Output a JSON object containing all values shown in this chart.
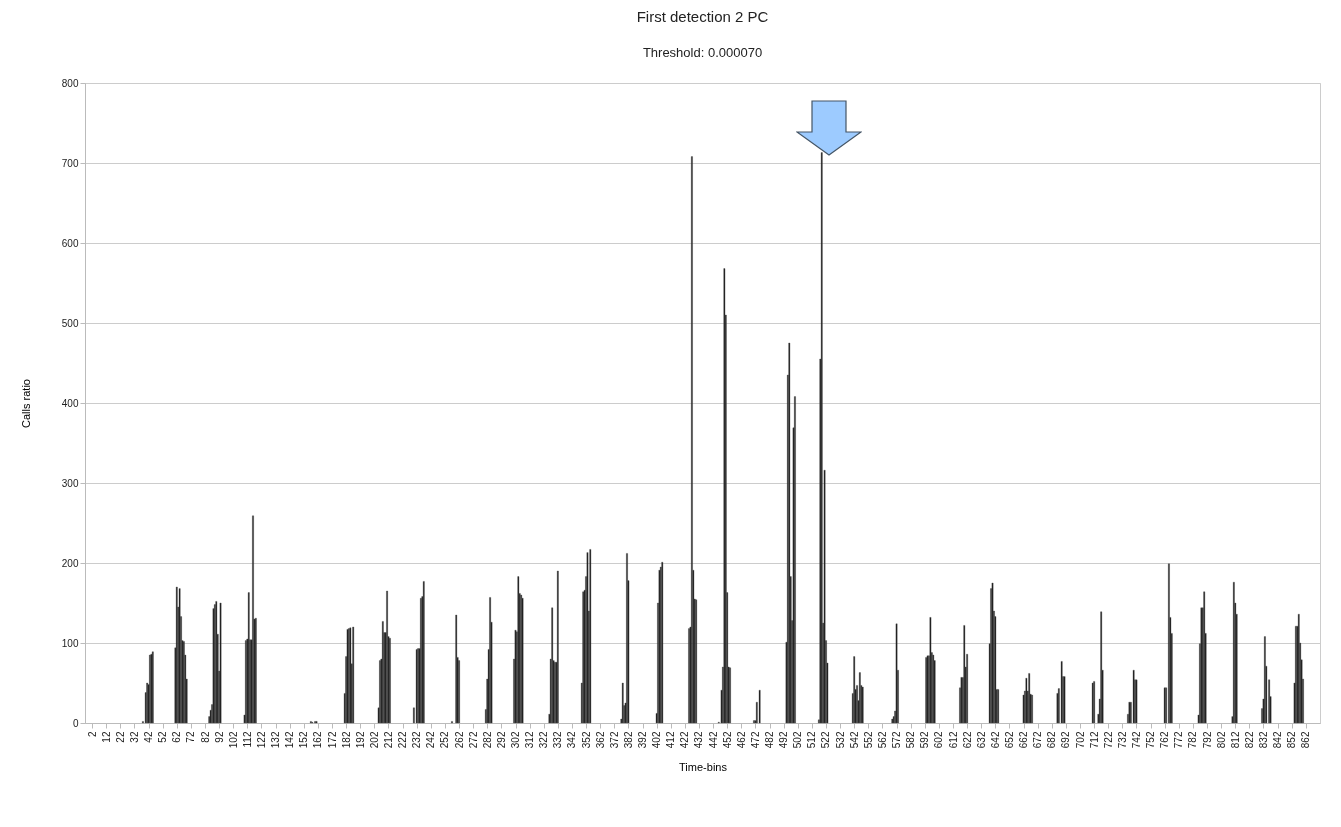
{
  "chart_data": {
    "type": "bar",
    "title": "First detection 2 PC",
    "subtitle": "Threshold: 0.000070",
    "xlabel": "Time-bins",
    "ylabel": "Calls ratio",
    "x": [
      38,
      40,
      41,
      42,
      43,
      44,
      45,
      61,
      62,
      63,
      64,
      65,
      66,
      67,
      68,
      69,
      85,
      86,
      87,
      88,
      89,
      90,
      91,
      92,
      93,
      110,
      111,
      112,
      113,
      114,
      115,
      116,
      117,
      118,
      157,
      158,
      160,
      161,
      181,
      182,
      183,
      184,
      185,
      186,
      187,
      205,
      206,
      207,
      208,
      209,
      210,
      211,
      212,
      213,
      230,
      232,
      233,
      234,
      235,
      236,
      237,
      257,
      260,
      261,
      262,
      281,
      282,
      283,
      284,
      285,
      301,
      302,
      303,
      304,
      305,
      306,
      307,
      326,
      327,
      328,
      329,
      330,
      331,
      332,
      349,
      350,
      351,
      352,
      353,
      354,
      355,
      377,
      378,
      379,
      380,
      381,
      382,
      402,
      403,
      404,
      405,
      406,
      425,
      426,
      427,
      428,
      429,
      430,
      446,
      448,
      449,
      450,
      451,
      452,
      453,
      454,
      471,
      472,
      473,
      475,
      494,
      495,
      496,
      497,
      498,
      499,
      500,
      517,
      518,
      519,
      520,
      521,
      522,
      523,
      541,
      542,
      543,
      544,
      545,
      546,
      547,
      548,
      569,
      570,
      571,
      572,
      573,
      593,
      594,
      595,
      596,
      597,
      598,
      599,
      617,
      618,
      619,
      620,
      621,
      622,
      638,
      639,
      640,
      641,
      642,
      643,
      644,
      662,
      663,
      664,
      665,
      666,
      667,
      668,
      686,
      687,
      689,
      690,
      691,
      711,
      712,
      715,
      716,
      717,
      718,
      736,
      737,
      738,
      740,
      741,
      742,
      762,
      763,
      765,
      766,
      767,
      786,
      787,
      788,
      789,
      790,
      791,
      810,
      811,
      812,
      813,
      831,
      832,
      833,
      834,
      836,
      837,
      854,
      855,
      856,
      857,
      858,
      859,
      860
    ],
    "values": [
      2,
      38,
      50,
      48,
      85,
      86,
      89,
      94,
      170,
      145,
      168,
      133,
      103,
      102,
      85,
      55,
      8,
      16,
      23,
      143,
      148,
      152,
      111,
      65,
      150,
      10,
      103,
      105,
      163,
      104,
      104,
      259,
      130,
      131,
      2,
      1,
      2,
      2,
      37,
      83,
      117,
      118,
      119,
      74,
      120,
      19,
      78,
      80,
      127,
      113,
      113,
      165,
      108,
      106,
      19,
      92,
      93,
      93,
      156,
      158,
      177,
      2,
      135,
      82,
      78,
      17,
      55,
      92,
      157,
      126,
      80,
      116,
      114,
      183,
      162,
      160,
      156,
      11,
      80,
      144,
      78,
      76,
      76,
      190,
      50,
      164,
      166,
      183,
      213,
      140,
      217,
      5,
      50,
      22,
      25,
      212,
      178,
      12,
      150,
      191,
      195,
      201,
      118,
      120,
      708,
      191,
      155,
      154,
      1,
      41,
      70,
      568,
      510,
      163,
      70,
      69,
      3,
      3,
      26,
      41,
      101,
      435,
      475,
      183,
      128,
      369,
      408,
      4,
      455,
      713,
      125,
      316,
      103,
      75,
      37,
      83,
      42,
      47,
      28,
      63,
      47,
      45,
      5,
      8,
      15,
      124,
      66,
      82,
      84,
      84,
      132,
      88,
      85,
      78,
      44,
      57,
      57,
      122,
      70,
      86,
      99,
      168,
      175,
      140,
      133,
      42,
      42,
      35,
      40,
      56,
      40,
      62,
      36,
      35,
      37,
      43,
      77,
      58,
      58,
      50,
      52,
      11,
      30,
      139,
      66,
      11,
      26,
      26,
      66,
      54,
      54,
      44,
      44,
      199,
      132,
      112,
      10,
      99,
      144,
      144,
      164,
      112,
      8,
      176,
      150,
      136,
      18,
      30,
      108,
      71,
      54,
      33,
      50,
      121,
      121,
      136,
      100,
      79,
      55
    ],
    "color": "#111111",
    "xlim": [
      0.5,
      868.5
    ],
    "xticks": [
      2,
      12,
      22,
      32,
      42,
      52,
      62,
      72,
      82,
      92,
      102,
      112,
      122,
      132,
      142,
      152,
      162,
      172,
      182,
      192,
      202,
      212,
      222,
      232,
      242,
      252,
      262,
      272,
      282,
      292,
      302,
      312,
      322,
      332,
      342,
      352,
      362,
      372,
      382,
      392,
      402,
      412,
      422,
      432,
      442,
      452,
      462,
      472,
      482,
      492,
      502,
      512,
      522,
      532,
      542,
      552,
      562,
      572,
      582,
      592,
      602,
      612,
      622,
      632,
      642,
      652,
      662,
      672,
      682,
      692,
      702,
      712,
      722,
      732,
      742,
      752,
      762,
      772,
      782,
      792,
      802,
      812,
      822,
      832,
      842,
      852,
      862
    ],
    "ylim": [
      0,
      800
    ],
    "yticks": [
      0,
      100,
      200,
      300,
      400,
      500,
      600,
      700,
      800
    ],
    "grid": "y"
  }
}
